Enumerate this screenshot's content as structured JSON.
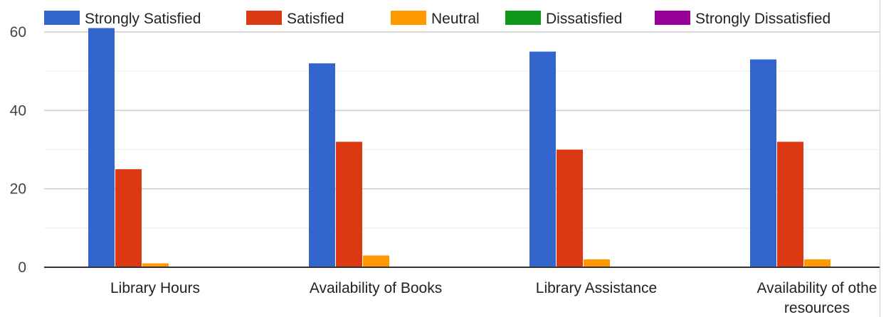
{
  "chart_data": {
    "type": "bar",
    "categories": [
      "Library Hours",
      "Availability of Books",
      "Library Assistance",
      "Availability of othe|resources"
    ],
    "series": [
      {
        "name": "Strongly Satisfied",
        "color": "#3366cc",
        "values": [
          61,
          52,
          55,
          53
        ]
      },
      {
        "name": "Satisfied",
        "color": "#dc3912",
        "values": [
          25,
          32,
          30,
          32
        ]
      },
      {
        "name": "Neutral",
        "color": "#ff9900",
        "values": [
          1,
          3,
          2,
          2
        ]
      },
      {
        "name": "Dissatisfied",
        "color": "#109618",
        "values": [
          0,
          0,
          0,
          0
        ]
      },
      {
        "name": "Strongly Dissatisfied",
        "color": "#990099",
        "values": [
          0,
          0,
          0,
          0
        ]
      }
    ],
    "yticks": [
      0,
      20,
      40,
      60
    ],
    "ylim": [
      0,
      60
    ],
    "grid": true,
    "legend_position": "top"
  }
}
